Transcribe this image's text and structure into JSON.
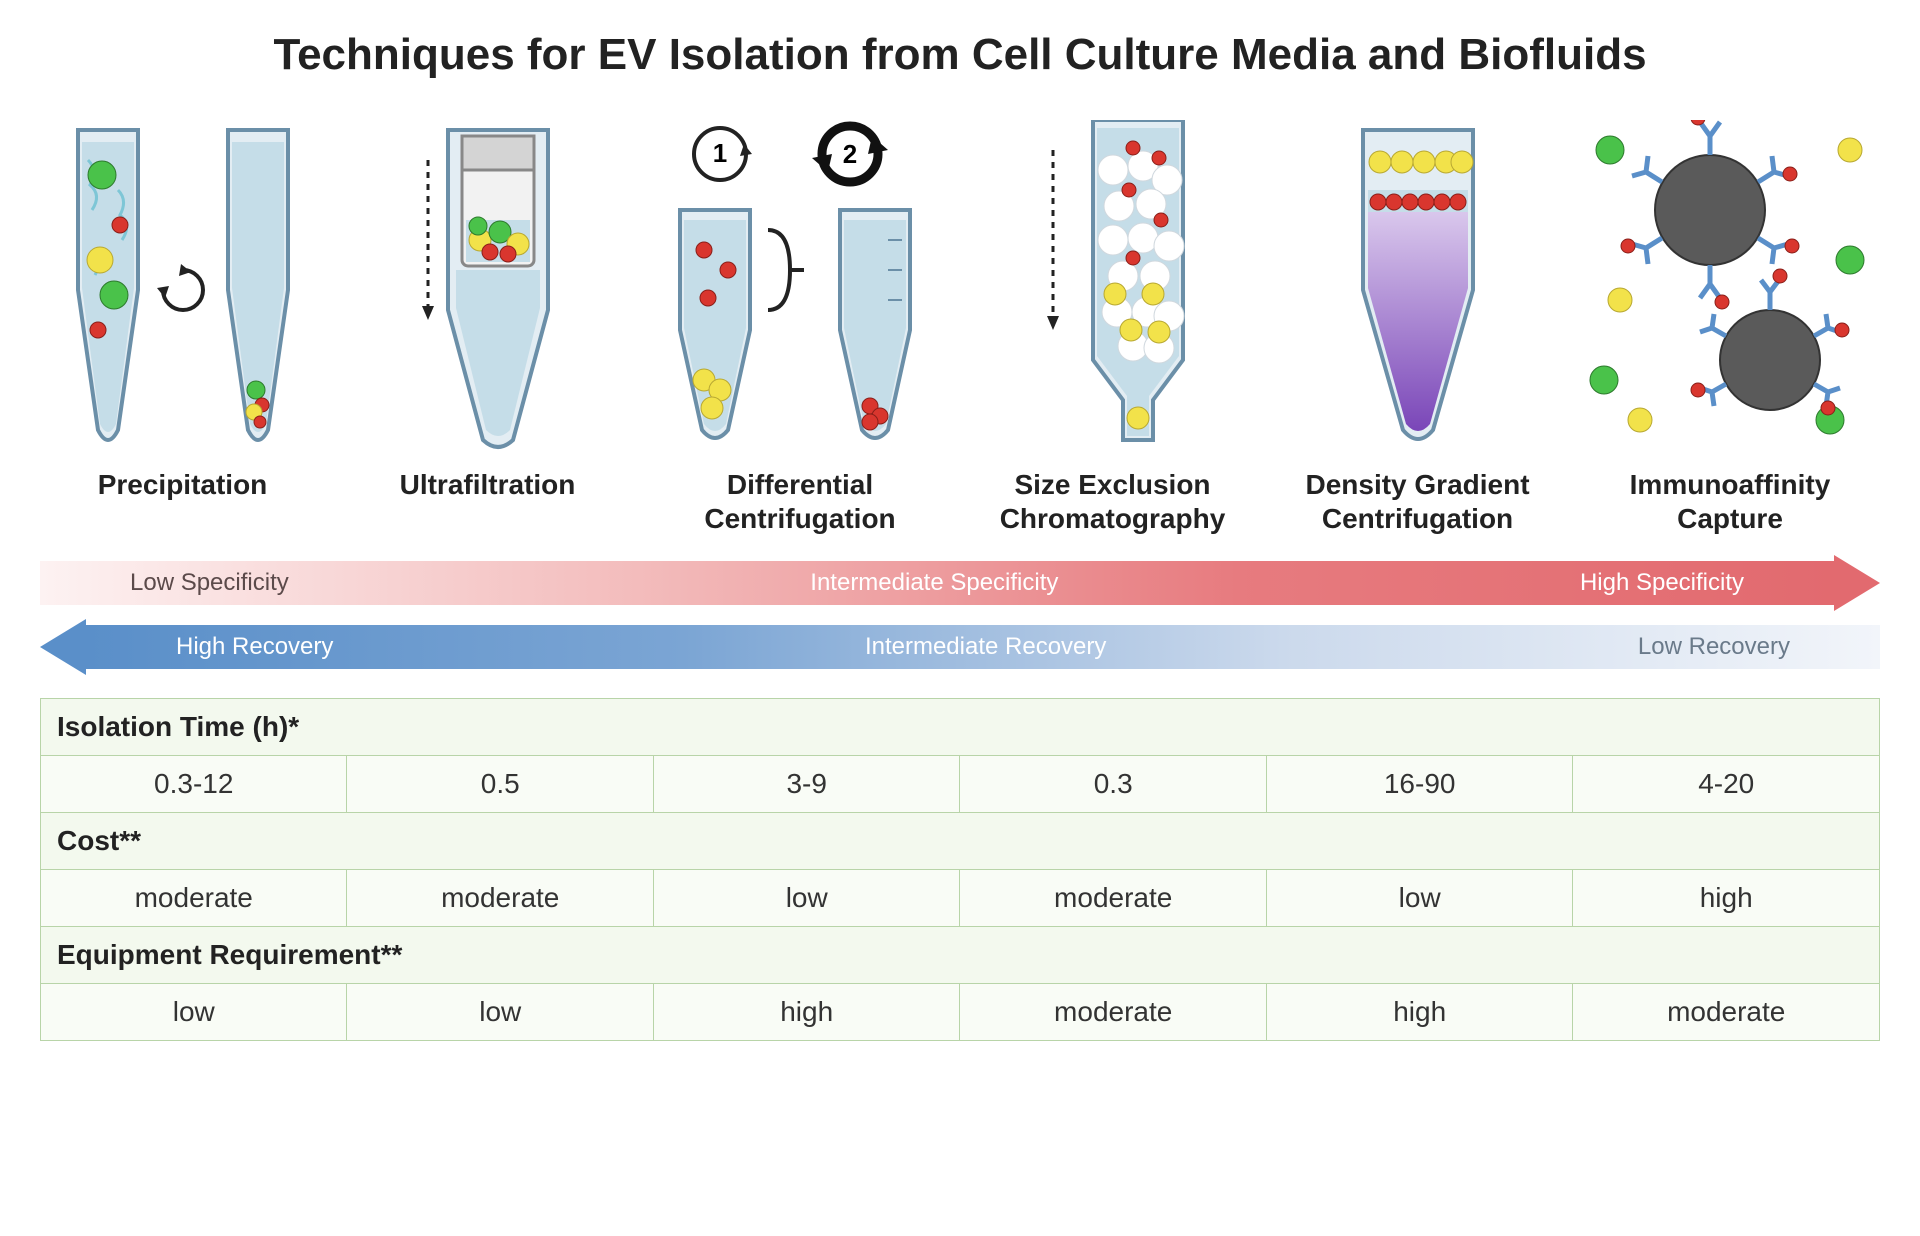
{
  "title": "Techniques for EV Isolation from Cell Culture Media and Biofluids",
  "colors": {
    "green": "#4ac24a",
    "yellow": "#f2e24a",
    "red": "#d9362e",
    "tube_outline": "#6b8fa8",
    "tube_fill": "#e3edf3",
    "liquid": "#c5dde8",
    "purple": "#8a5ec2",
    "bead_gray": "#5a5a5a",
    "antibody": "#5a8fc9",
    "bg": "#ffffff"
  },
  "techniques": [
    {
      "label": "Precipitation"
    },
    {
      "label": "Ultrafiltration"
    },
    {
      "label": "Differential\nCentrifugation"
    },
    {
      "label": "Size Exclusion\nChromatography"
    },
    {
      "label": "Density Gradient\nCentrifugation"
    },
    {
      "label": "Immunoaffinity\nCapture"
    }
  ],
  "specificity_arrow": {
    "direction": "right",
    "gradient_from": "#fdf2f2",
    "gradient_to": "#e26a6f",
    "labels": [
      {
        "text": "Low Specificity",
        "tone": "dark"
      },
      {
        "text": "Intermediate Specificity",
        "tone": "white"
      },
      {
        "text": "High Specificity",
        "tone": "white"
      }
    ]
  },
  "recovery_arrow": {
    "direction": "left",
    "gradient_from": "#5a8fc9",
    "gradient_to": "#f2f5fa",
    "labels": [
      {
        "text": "High Recovery",
        "tone": "white"
      },
      {
        "text": "Intermediate Recovery",
        "tone": "white"
      },
      {
        "text": "Low Recovery",
        "tone": "grayblue"
      }
    ]
  },
  "table": {
    "rows": [
      {
        "header": "Isolation Time (h)*",
        "cells": [
          "0.3-12",
          "0.5",
          "3-9",
          "0.3",
          "16-90",
          "4-20"
        ]
      },
      {
        "header": "Cost**",
        "cells": [
          "moderate",
          "moderate",
          "low",
          "moderate",
          "low",
          "high"
        ]
      },
      {
        "header": "Equipment Requirement**",
        "cells": [
          "low",
          "low",
          "high",
          "moderate",
          "high",
          "moderate"
        ]
      }
    ],
    "border_color": "#b8d4a8",
    "header_bg": "#f3f9ee",
    "cell_bg": "#f9fcf6",
    "fontsize": 28
  }
}
